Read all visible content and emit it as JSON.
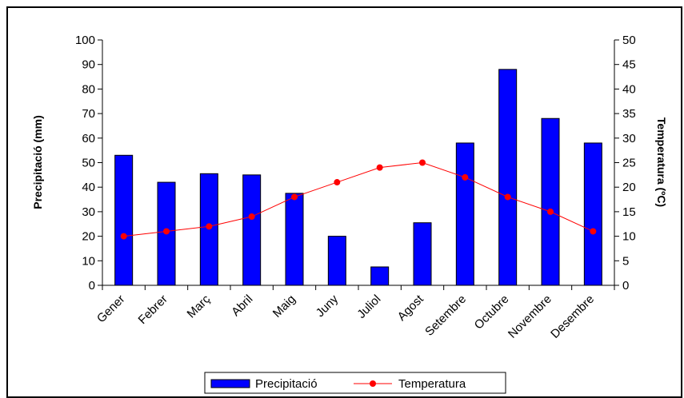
{
  "chart_data": {
    "type": "bar",
    "categories": [
      "Gener",
      "Febrer",
      "Març",
      "Abril",
      "Maig",
      "Juny",
      "Juliol",
      "Agost",
      "Setembre",
      "Octubre",
      "Novembre",
      "Desembre"
    ],
    "series": [
      {
        "name": "Precipitació",
        "type": "bar",
        "axis": "left",
        "color": "#0000ff",
        "values": [
          53,
          42,
          45.5,
          45,
          37.5,
          20,
          7.5,
          25.5,
          58,
          88,
          68,
          58
        ]
      },
      {
        "name": "Temperatura",
        "type": "line",
        "axis": "right",
        "color": "#ff0000",
        "values": [
          10,
          11,
          12,
          14,
          18,
          21,
          24,
          25,
          22,
          18,
          15,
          11
        ]
      }
    ],
    "ylabel": "Precipitació (mm)",
    "ylabel_right": "Temperatura (ºC)",
    "ylim": [
      0,
      100
    ],
    "ylim_right": [
      0,
      50
    ],
    "yticks": [
      0,
      10,
      20,
      30,
      40,
      50,
      60,
      70,
      80,
      90,
      100
    ],
    "yticks_right": [
      0,
      5,
      10,
      15,
      20,
      25,
      30,
      35,
      40,
      45,
      50
    ],
    "grid": false,
    "legend": "bottom"
  }
}
